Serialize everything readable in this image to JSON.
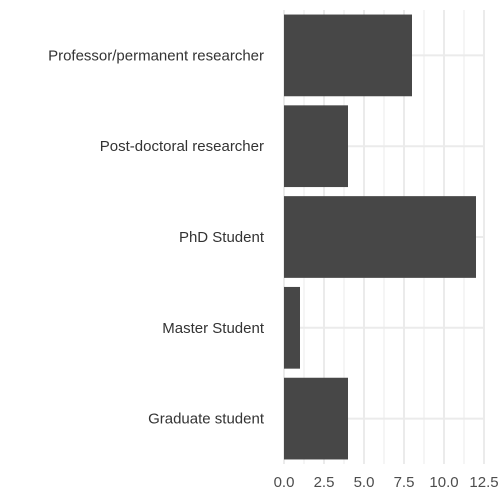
{
  "chart_data": {
    "type": "bar",
    "orientation": "horizontal",
    "categories": [
      "Professor/permanent researcher",
      "Post-doctoral researcher",
      "PhD Student",
      "Master Student ",
      "Graduate student"
    ],
    "values": [
      8,
      4,
      12,
      1,
      4
    ],
    "xlim": [
      0,
      12.5
    ],
    "x_ticks": [
      0,
      2.5,
      5,
      7.5,
      10,
      12.5
    ],
    "x_tick_labels": [
      "0.0",
      "2.5",
      "5.0",
      "7.5",
      "10.0",
      "12.5"
    ],
    "title": "",
    "xlabel": "",
    "ylabel": "",
    "grid": true,
    "legend": "none",
    "colors": {
      "bar": "#474747",
      "grid_major": "#ebebeb",
      "grid_minor": "#f3f3f3",
      "text": "#4d4d4d"
    }
  }
}
